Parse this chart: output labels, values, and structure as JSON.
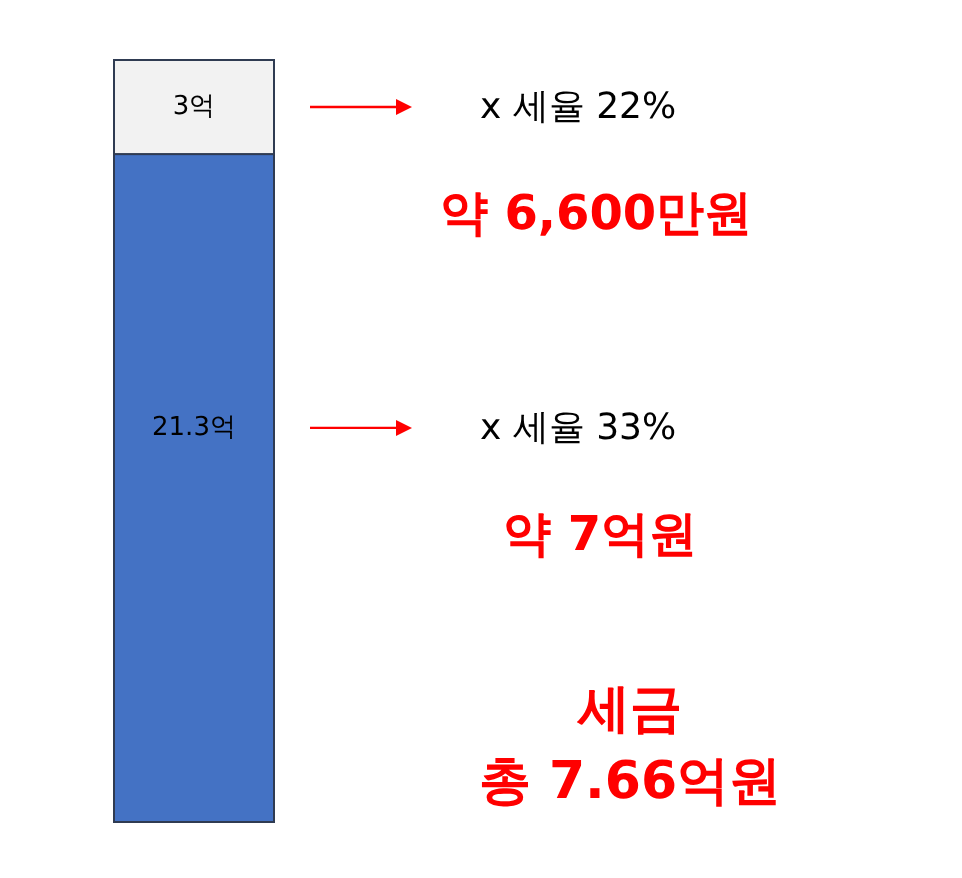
{
  "chart_data": {
    "type": "bar",
    "stacked": true,
    "categories": [
      null
    ],
    "series": [
      {
        "color": "#4472c4",
        "values": [
          21.3
        ],
        "value_labels": [
          "21.3억"
        ]
      },
      {
        "color": "#f2f2f2",
        "values": [
          3
        ],
        "value_labels": [
          "3억"
        ]
      }
    ],
    "annotations": [
      "x 세율 22%",
      "약 6,600만원",
      "x 세율 33%",
      "약 7억원",
      "세금",
      "총 7.66억원"
    ]
  }
}
